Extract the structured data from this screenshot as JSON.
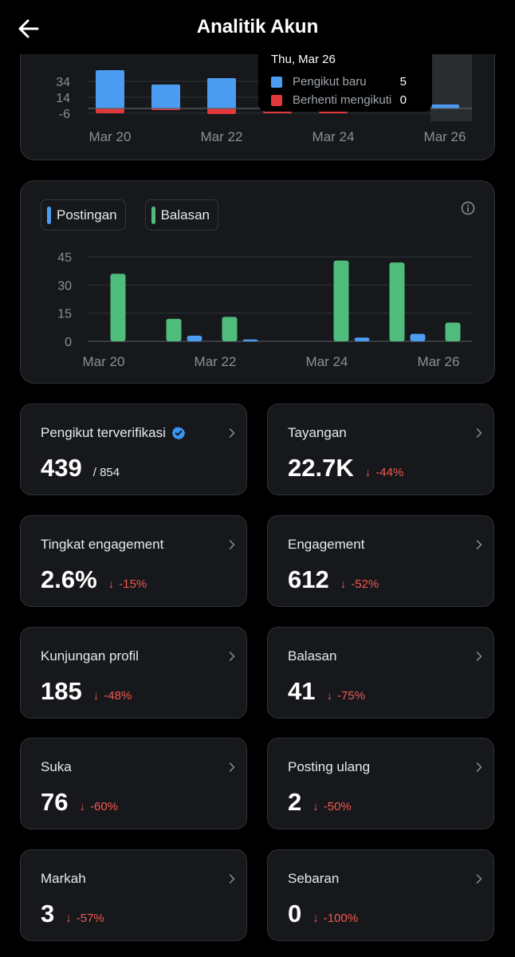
{
  "header": {
    "title": "Analitik Akun"
  },
  "colors": {
    "blue": "#4c9cf1",
    "red": "#e3373b",
    "green": "#4fbc7b",
    "down": "#f4574e",
    "verified": "#3b95f0"
  },
  "chart_data": [
    {
      "type": "bar",
      "title": "",
      "categories": [
        "Mar 20",
        "Mar 21",
        "Mar 22",
        "Mar 23",
        "Mar 24",
        "Mar 25",
        "Mar 26"
      ],
      "series": [
        {
          "name": "Pengikut baru",
          "values": [
            48,
            30,
            38,
            0,
            0,
            0,
            5
          ]
        },
        {
          "name": "Berhenti mengikuti",
          "values": [
            -6,
            -2,
            -7,
            -6,
            -6,
            0,
            0
          ]
        }
      ],
      "y_ticks": [
        34,
        14,
        -6
      ],
      "x_tick_labels": [
        "Mar 20",
        "Mar 22",
        "Mar 24",
        "Mar 26"
      ],
      "tooltip": {
        "date": "Thu, Mar 26",
        "rows": [
          {
            "label": "Pengikut baru",
            "value": "5"
          },
          {
            "label": "Berhenti mengikuti",
            "value": "0"
          }
        ]
      }
    },
    {
      "type": "bar",
      "title": "",
      "categories": [
        "Mar 20",
        "Mar 21",
        "Mar 22",
        "Mar 23",
        "Mar 24",
        "Mar 25",
        "Mar 26"
      ],
      "series": [
        {
          "name": "Postingan",
          "values": [
            0,
            3,
            1,
            0,
            2,
            4,
            0
          ]
        },
        {
          "name": "Balasan",
          "values": [
            36,
            12,
            13,
            0,
            43,
            42,
            10
          ]
        }
      ],
      "y_ticks": [
        45,
        30,
        15,
        0
      ],
      "ylim": [
        0,
        45
      ],
      "x_tick_labels": [
        "Mar 20",
        "Mar 22",
        "Mar 24",
        "Mar 26"
      ],
      "legend": [
        "Postingan",
        "Balasan"
      ]
    }
  ],
  "metrics": [
    {
      "label": "Pengikut terverifikasi",
      "value": "439",
      "total": "/ 854",
      "delta": "",
      "verified": true
    },
    {
      "label": "Tayangan",
      "value": "22.7K",
      "delta": "-44%"
    },
    {
      "label": "Tingkat engagement",
      "value": "2.6%",
      "delta": "-15%"
    },
    {
      "label": "Engagement",
      "value": "612",
      "delta": "-52%"
    },
    {
      "label": "Kunjungan profil",
      "value": "185",
      "delta": "-48%"
    },
    {
      "label": "Balasan",
      "value": "41",
      "delta": "-75%"
    },
    {
      "label": "Suka",
      "value": "76",
      "delta": "-60%"
    },
    {
      "label": "Posting ulang",
      "value": "2",
      "delta": "-50%"
    },
    {
      "label": "Markah",
      "value": "3",
      "delta": "-57%"
    },
    {
      "label": "Sebaran",
      "value": "0",
      "delta": "-100%"
    }
  ]
}
